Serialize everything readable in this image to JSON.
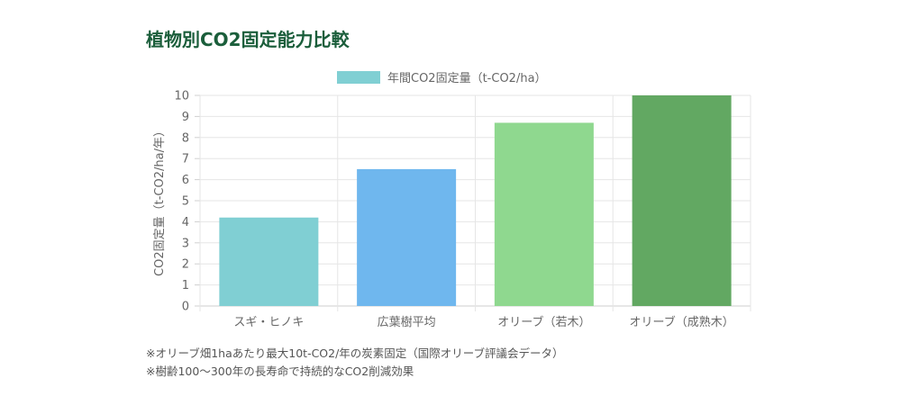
{
  "title": "植物別CO2固定能力比較",
  "chart_data": {
    "type": "bar",
    "categories": [
      "スギ・ヒノキ",
      "広葉樹平均",
      "オリーブ（若木）",
      "オリーブ（成熟木）"
    ],
    "series": [
      {
        "name": "年間CO2固定量（t-CO2/ha）",
        "values": [
          4.2,
          6.5,
          8.7,
          10
        ]
      }
    ],
    "bar_colors": [
      "#80cfd3",
      "#6fb7ee",
      "#8fd88f",
      "#62a862"
    ],
    "legend_color": "#80cfd3",
    "ylabel": "CO2固定量（t-CO2/ha/年）",
    "xlabel": "",
    "ylim": [
      0,
      10
    ],
    "yticks": [
      0,
      1,
      2,
      3,
      4,
      5,
      6,
      7,
      8,
      9,
      10
    ],
    "legend_position": "top",
    "grid": true
  },
  "notes": [
    "※オリーブ畑1haあたり最大10t-CO2/年の炭素固定（国際オリーブ評議会データ）",
    "※樹齢100〜300年の長寿命で持続的なCO2削減効果"
  ]
}
